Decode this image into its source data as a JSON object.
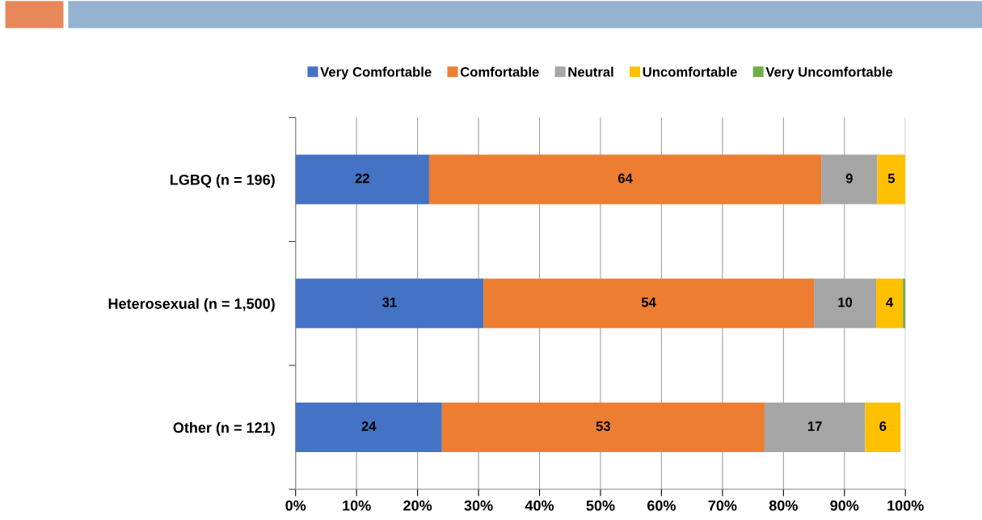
{
  "chart_data": {
    "type": "bar",
    "orientation": "horizontal",
    "stacked": true,
    "categories": [
      "LGBQ (n = 196)",
      "Heterosexual (n = 1,500)",
      "Other (n = 121)"
    ],
    "series": [
      {
        "name": "Very Comfortable",
        "color": "#4472c4",
        "values": [
          21.9,
          30.8,
          24.0
        ],
        "value_labels": [
          "22",
          "31",
          "24"
        ]
      },
      {
        "name": "Comfortable",
        "color": "#ed7d31",
        "values": [
          64.3,
          54.2,
          52.9
        ],
        "value_labels": [
          "64",
          "54",
          "53"
        ]
      },
      {
        "name": "Neutral",
        "color": "#a5a5a5",
        "values": [
          9.2,
          10.2,
          16.5
        ],
        "value_labels": [
          "9",
          "10",
          "17"
        ]
      },
      {
        "name": "Uncomfortable",
        "color": "#ffc000",
        "values": [
          4.6,
          4.4,
          5.8
        ],
        "value_labels": [
          "5",
          "4",
          "6"
        ]
      },
      {
        "name": "Very Uncomfortable",
        "color": "#70ad47",
        "values": [
          0.0,
          0.4,
          0.0
        ],
        "value_labels": [
          null,
          null,
          null
        ]
      }
    ],
    "xlim": [
      0,
      100
    ],
    "xticks": [
      {
        "value": 0,
        "label": "0%"
      },
      {
        "value": 10,
        "label": "10%"
      },
      {
        "value": 20,
        "label": "20%"
      },
      {
        "value": 30,
        "label": "30%"
      },
      {
        "value": 40,
        "label": "40%"
      },
      {
        "value": 50,
        "label": "50%"
      },
      {
        "value": 60,
        "label": "60%"
      },
      {
        "value": 70,
        "label": "70%"
      },
      {
        "value": 80,
        "label": "80%"
      },
      {
        "value": 90,
        "label": "90%"
      },
      {
        "value": 100,
        "label": "100%"
      }
    ],
    "grid": "x",
    "legend": "top"
  }
}
